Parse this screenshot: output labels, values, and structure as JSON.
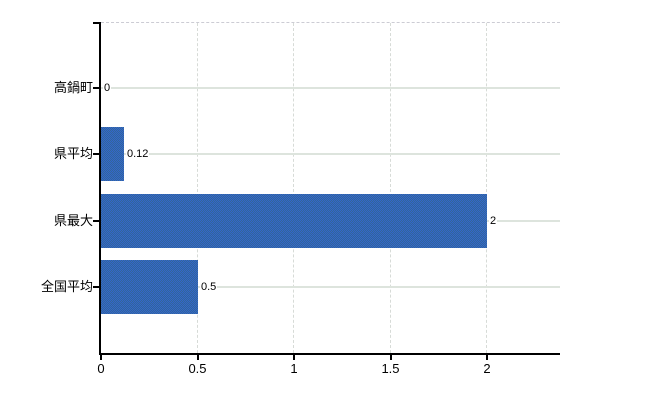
{
  "chart_data": {
    "type": "bar",
    "orientation": "horizontal",
    "title": "",
    "xlabel": "",
    "ylabel": "",
    "categories": [
      "高鍋町",
      "県平均",
      "県最大",
      "全国平均"
    ],
    "values": [
      0,
      0.12,
      2,
      0.5
    ],
    "value_labels": [
      "0",
      "0.12",
      "2",
      "0.5"
    ],
    "x_ticks": [
      0,
      0.5,
      1,
      1.5,
      2
    ],
    "x_tick_labels": [
      "0",
      "0.5",
      "1",
      "1.5",
      "2"
    ],
    "xlim": [
      0,
      2.38
    ],
    "grid": {
      "horizontal": "solid",
      "vertical": "dashed",
      "top_border": "dashed"
    },
    "legend": "none",
    "colors": {
      "bar_dither_1": "#3366cc",
      "bar_dither_2": "#336699",
      "bar_average": "#3366b3",
      "axis": "#000000",
      "grid_horizontal": "#dde4dd",
      "grid_vertical": "#d7dbd7",
      "top_border": "#ccccd4",
      "text": "#000000",
      "background": "#ffffff"
    }
  }
}
